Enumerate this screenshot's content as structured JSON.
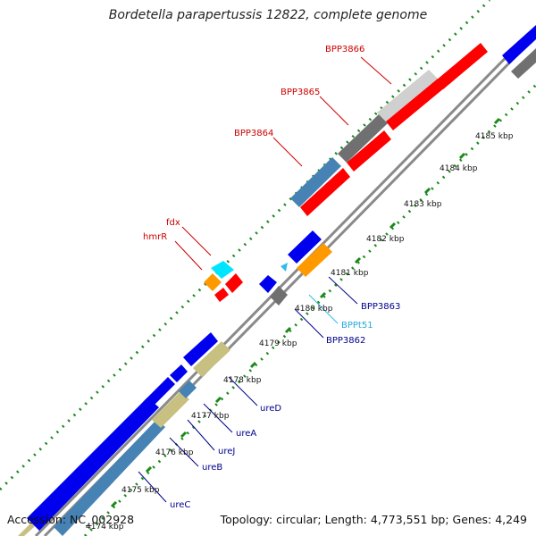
{
  "title": "Bordetella parapertussis 12822, complete genome",
  "footer": {
    "accession": "Accession: NC_002928",
    "summary": "Topology: circular; Length: 4,773,551 bp; Genes: 4,249"
  },
  "colors": {
    "backbone": "#909090",
    "tick_dots": "#1a8a1a",
    "forward_label": "#cc0000",
    "reverse_label": "#00008b",
    "trna_label": "#22aadd",
    "cds_red": "#ff0000",
    "cds_blue": "#0000ee",
    "cds_gray": "#d0d0d0",
    "cds_darkgray": "#707070",
    "cds_steel": "#4682b4",
    "cds_khaki": "#c8c080",
    "cds_orange": "#ff9900",
    "cds_cyan": "#00e5ff",
    "trna_cyan": "#33bbee"
  },
  "ticks": [
    {
      "label": "4174 kbp"
    },
    {
      "label": "4175 kbp"
    },
    {
      "label": "4176 kbp"
    },
    {
      "label": "4177 kbp"
    },
    {
      "label": "4178 kbp"
    },
    {
      "label": "4179 kbp"
    },
    {
      "label": "4180 kbp"
    },
    {
      "label": "4181 kbp"
    },
    {
      "label": "4182 kbp"
    },
    {
      "label": "4183 kbp"
    },
    {
      "label": "4184 kbp"
    },
    {
      "label": "4185 kbp"
    }
  ],
  "gene_labels": [
    {
      "name": "BPP3866",
      "strand": "forward"
    },
    {
      "name": "BPP3865",
      "strand": "forward"
    },
    {
      "name": "BPP3864",
      "strand": "forward"
    },
    {
      "name": "fdx",
      "strand": "forward"
    },
    {
      "name": "hmrR",
      "strand": "forward"
    },
    {
      "name": "BPP3863",
      "strand": "reverse"
    },
    {
      "name": "BPPt51",
      "strand": "trna"
    },
    {
      "name": "BPP3862",
      "strand": "reverse"
    },
    {
      "name": "ureD",
      "strand": "reverse"
    },
    {
      "name": "ureA",
      "strand": "reverse"
    },
    {
      "name": "ureJ",
      "strand": "reverse"
    },
    {
      "name": "ureB",
      "strand": "reverse"
    },
    {
      "name": "ureC",
      "strand": "reverse"
    }
  ]
}
